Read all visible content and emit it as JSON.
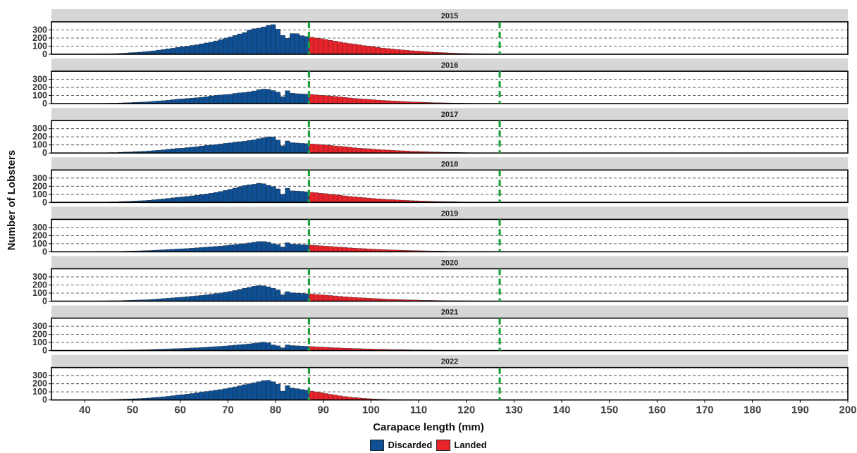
{
  "chart_data": {
    "type": "bar",
    "layout": "small multiples: one panel per year, stacked vertically, shared x axis",
    "panels": [
      "2015",
      "2016",
      "2017",
      "2018",
      "2019",
      "2020",
      "2021",
      "2022"
    ],
    "xlabel": "Carapace length (mm)",
    "ylabel": "Number of Lobsters",
    "xlim": [
      33,
      200
    ],
    "ylim": [
      0,
      400
    ],
    "x_ticks": [
      40,
      50,
      60,
      70,
      80,
      90,
      100,
      110,
      120,
      130,
      140,
      150,
      160,
      170,
      180,
      190,
      200
    ],
    "y_ticks": [
      0,
      100,
      200,
      300
    ],
    "grid": "horizontal dashed lines at 0, 100, 200, 300",
    "bin_width_mm": 1,
    "reference_lines": [
      {
        "x": 87,
        "color": "#1ea03c",
        "style": "dashed"
      },
      {
        "x": 127,
        "color": "#1ea03c",
        "style": "dashed"
      }
    ],
    "series": [
      {
        "name": "Discarded",
        "color": "#0f4f94",
        "x_range": [
          33,
          86
        ]
      },
      {
        "name": "Landed",
        "color": "#e8232a",
        "x_range": [
          87,
          200
        ]
      }
    ],
    "legend_position": "bottom",
    "bin_start": 33,
    "bin_end": 199,
    "values": {
      "2015": [
        0,
        0,
        0,
        1,
        1,
        1,
        2,
        2,
        3,
        4,
        5,
        5,
        6,
        8,
        11,
        14,
        19,
        22,
        26,
        31,
        36,
        43,
        52,
        58,
        67,
        75,
        84,
        92,
        100,
        109,
        117,
        129,
        140,
        150,
        165,
        181,
        196,
        214,
        232,
        252,
        268,
        296,
        315,
        322,
        338,
        357,
        366,
        310,
        233,
        198,
        256,
        254,
        230,
        220,
        210,
        200,
        193,
        183,
        172,
        162,
        152,
        142,
        133,
        126,
        117,
        108,
        100,
        92,
        84,
        77,
        71,
        65,
        59,
        54,
        49,
        44,
        40,
        36,
        32,
        28,
        25,
        22,
        19,
        17,
        14,
        12,
        10,
        9,
        8,
        7,
        6,
        5,
        5,
        5,
        4,
        4,
        4,
        4,
        3,
        3,
        3,
        3,
        3,
        2,
        2,
        2,
        2,
        2,
        2,
        2,
        2,
        1,
        1,
        1,
        1,
        1,
        1,
        1,
        1,
        1,
        1,
        1,
        1,
        1,
        1,
        1,
        1,
        1,
        1,
        1,
        1,
        1,
        1,
        1,
        0,
        0,
        0,
        0,
        0,
        0,
        0,
        0,
        0,
        0,
        0,
        0,
        0,
        0,
        0,
        0,
        0,
        0,
        0,
        0,
        0,
        0,
        0,
        0,
        0,
        0,
        0,
        0,
        0,
        0,
        0,
        0,
        0
      ],
      "2016": [
        0,
        0,
        0,
        1,
        1,
        1,
        1,
        2,
        3,
        4,
        4,
        5,
        6,
        6,
        9,
        11,
        13,
        16,
        18,
        20,
        24,
        29,
        34,
        37,
        43,
        49,
        55,
        59,
        64,
        69,
        74,
        79,
        86,
        94,
        103,
        107,
        112,
        116,
        127,
        134,
        137,
        146,
        157,
        173,
        180,
        177,
        162,
        143,
        87,
        160,
        130,
        123,
        121,
        118,
        114,
        109,
        104,
        99,
        94,
        89,
        83,
        77,
        71,
        66,
        61,
        57,
        53,
        48,
        44,
        40,
        37,
        34,
        31,
        28,
        25,
        22,
        20,
        18,
        16,
        14,
        12,
        11,
        10,
        9,
        8,
        7,
        6,
        5,
        5,
        4,
        4,
        4,
        3,
        3,
        3,
        3,
        2,
        2,
        2,
        2,
        2,
        2,
        2,
        2,
        2,
        1,
        1,
        1,
        1,
        1,
        1,
        1,
        1,
        1,
        1,
        1,
        1,
        1,
        1,
        1,
        1,
        1,
        1,
        1,
        1,
        1,
        1,
        1,
        0,
        0,
        0,
        0,
        0,
        0,
        0,
        0,
        0,
        0,
        0,
        0,
        0,
        0,
        0,
        0,
        0,
        0,
        0,
        0,
        0,
        0,
        0,
        0,
        0,
        0,
        0,
        0,
        0,
        0,
        0,
        0,
        0,
        0,
        0
      ],
      "2017": [
        0,
        0,
        0,
        1,
        1,
        1,
        1,
        2,
        3,
        3,
        4,
        4,
        6,
        6,
        10,
        12,
        13,
        17,
        19,
        21,
        25,
        31,
        35,
        40,
        46,
        52,
        58,
        61,
        67,
        72,
        79,
        86,
        94,
        98,
        105,
        112,
        120,
        126,
        135,
        140,
        146,
        155,
        163,
        178,
        188,
        200,
        198,
        160,
        90,
        150,
        128,
        124,
        120,
        116,
        113,
        109,
        104,
        99,
        94,
        88,
        83,
        77,
        71,
        66,
        61,
        57,
        53,
        48,
        44,
        40,
        37,
        34,
        31,
        28,
        25,
        22,
        20,
        18,
        16,
        14,
        12,
        11,
        10,
        9,
        8,
        7,
        6,
        5,
        5,
        4,
        4,
        4,
        3,
        3,
        3,
        3,
        2,
        2,
        2,
        2,
        2,
        2,
        2,
        2,
        2,
        1,
        1,
        1,
        1,
        1,
        1,
        1,
        1,
        1,
        1,
        1,
        1,
        1,
        1,
        1,
        1,
        1,
        1,
        1,
        1,
        1,
        1,
        1,
        0,
        0,
        0,
        0,
        0,
        0,
        0,
        0,
        0,
        0,
        0,
        0,
        0,
        0,
        0,
        0,
        0,
        0,
        0,
        0,
        0,
        0,
        0,
        0,
        0,
        0,
        0,
        0,
        0,
        0,
        0,
        0,
        0,
        0,
        0
      ],
      "2018": [
        0,
        0,
        0,
        1,
        1,
        1,
        2,
        2,
        3,
        4,
        5,
        5,
        7,
        7,
        10,
        12,
        14,
        18,
        20,
        23,
        27,
        33,
        38,
        43,
        50,
        57,
        63,
        68,
        75,
        81,
        88,
        96,
        105,
        113,
        124,
        135,
        149,
        163,
        177,
        192,
        208,
        218,
        225,
        237,
        231,
        211,
        195,
        168,
        102,
        176,
        143,
        141,
        137,
        132,
        125,
        120,
        114,
        108,
        101,
        94,
        88,
        81,
        75,
        69,
        64,
        59,
        54,
        49,
        45,
        41,
        37,
        34,
        31,
        28,
        25,
        22,
        20,
        18,
        16,
        14,
        12,
        11,
        10,
        9,
        8,
        7,
        6,
        5,
        5,
        4,
        4,
        4,
        3,
        3,
        3,
        3,
        2,
        2,
        2,
        2,
        2,
        2,
        2,
        2,
        2,
        1,
        1,
        1,
        1,
        1,
        1,
        1,
        1,
        1,
        1,
        1,
        1,
        1,
        1,
        1,
        1,
        1,
        1,
        1,
        1,
        1,
        1,
        1,
        0,
        0,
        0,
        0,
        0,
        0,
        0,
        0,
        0,
        0,
        0,
        0,
        0,
        0,
        0,
        0,
        0,
        0,
        0,
        0,
        0,
        0,
        0,
        0,
        0,
        0,
        0,
        0,
        0,
        0,
        0,
        0,
        0,
        0,
        0
      ],
      "2019": [
        0,
        0,
        0,
        1,
        1,
        1,
        1,
        2,
        2,
        3,
        4,
        4,
        5,
        5,
        6,
        8,
        9,
        11,
        12,
        14,
        16,
        19,
        22,
        25,
        29,
        32,
        35,
        38,
        41,
        45,
        49,
        53,
        58,
        62,
        67,
        72,
        77,
        83,
        89,
        95,
        102,
        110,
        119,
        127,
        128,
        120,
        100,
        90,
        60,
        112,
        95,
        92,
        89,
        86,
        82,
        78,
        74,
        70,
        66,
        61,
        57,
        53,
        49,
        46,
        42,
        39,
        36,
        33,
        30,
        28,
        25,
        23,
        21,
        19,
        17,
        16,
        14,
        13,
        12,
        11,
        10,
        9,
        8,
        7,
        6,
        6,
        5,
        5,
        4,
        4,
        4,
        3,
        3,
        3,
        3,
        2,
        2,
        2,
        2,
        2,
        2,
        2,
        2,
        2,
        1,
        1,
        1,
        1,
        1,
        1,
        1,
        1,
        1,
        1,
        1,
        1,
        1,
        1,
        1,
        1,
        1,
        1,
        1,
        1,
        1,
        1,
        1,
        1,
        0,
        0,
        0,
        0,
        0,
        0,
        0,
        0,
        0,
        0,
        0,
        0,
        0,
        0,
        0,
        0,
        0,
        0,
        0,
        0,
        0,
        0,
        0,
        0,
        0,
        0,
        0,
        0,
        0,
        0,
        0,
        0,
        0,
        0,
        0
      ],
      "2020": [
        0,
        0,
        0,
        1,
        1,
        1,
        2,
        2,
        3,
        3,
        4,
        4,
        5,
        6,
        7,
        9,
        11,
        13,
        15,
        17,
        20,
        24,
        29,
        32,
        37,
        42,
        47,
        51,
        56,
        61,
        66,
        72,
        79,
        86,
        94,
        103,
        112,
        121,
        132,
        146,
        160,
        172,
        184,
        192,
        190,
        178,
        160,
        140,
        80,
        118,
        104,
        100,
        96,
        92,
        88,
        83,
        79,
        74,
        70,
        65,
        60,
        55,
        51,
        47,
        43,
        40,
        37,
        34,
        31,
        28,
        25,
        23,
        21,
        19,
        17,
        15,
        14,
        12,
        11,
        10,
        9,
        8,
        7,
        6,
        6,
        5,
        5,
        4,
        4,
        4,
        3,
        3,
        3,
        3,
        2,
        2,
        2,
        2,
        2,
        2,
        2,
        2,
        2,
        1,
        1,
        1,
        1,
        1,
        1,
        1,
        1,
        1,
        1,
        1,
        1,
        1,
        1,
        1,
        1,
        1,
        1,
        1,
        1,
        1,
        1,
        1,
        1,
        1,
        0,
        0,
        0,
        0,
        0,
        0,
        0,
        0,
        0,
        0,
        0,
        0,
        0,
        0,
        0,
        0,
        0,
        0,
        0,
        0,
        0,
        0,
        0,
        0,
        0,
        0,
        0,
        0,
        0,
        0,
        0,
        0,
        0,
        0,
        0
      ],
      "2021": [
        0,
        0,
        0,
        0,
        1,
        1,
        1,
        1,
        2,
        2,
        3,
        3,
        4,
        4,
        5,
        6,
        7,
        8,
        9,
        10,
        12,
        14,
        16,
        18,
        20,
        23,
        25,
        27,
        30,
        33,
        35,
        38,
        41,
        45,
        49,
        53,
        57,
        62,
        67,
        72,
        77,
        83,
        89,
        96,
        105,
        96,
        70,
        60,
        35,
        70,
        62,
        59,
        56,
        53,
        50,
        47,
        44,
        41,
        38,
        35,
        33,
        30,
        28,
        26,
        24,
        22,
        20,
        18,
        17,
        16,
        14,
        13,
        12,
        11,
        10,
        9,
        8,
        7,
        7,
        6,
        5,
        5,
        4,
        4,
        4,
        3,
        3,
        3,
        3,
        2,
        2,
        2,
        2,
        2,
        2,
        2,
        2,
        2,
        1,
        1,
        1,
        1,
        1,
        1,
        1,
        1,
        1,
        1,
        1,
        1,
        1,
        1,
        1,
        1,
        1,
        1,
        1,
        1,
        1,
        1,
        1,
        1,
        1,
        1,
        1,
        1,
        0,
        0,
        0,
        0,
        0,
        0,
        0,
        0,
        0,
        0,
        0,
        0,
        0,
        0,
        0,
        0,
        0,
        0,
        0,
        0,
        0,
        0,
        0,
        0,
        0,
        0,
        0,
        0,
        0,
        0,
        0,
        0,
        0,
        0,
        0,
        0,
        0
      ],
      "2022": [
        0,
        0,
        0,
        1,
        1,
        1,
        2,
        2,
        3,
        4,
        4,
        5,
        6,
        7,
        9,
        11,
        13,
        15,
        18,
        21,
        25,
        30,
        35,
        40,
        46,
        53,
        60,
        66,
        73,
        80,
        88,
        97,
        106,
        113,
        121,
        130,
        140,
        150,
        162,
        175,
        189,
        200,
        212,
        226,
        238,
        242,
        226,
        196,
        110,
        176,
        148,
        140,
        130,
        120,
        110,
        100,
        90,
        80,
        70,
        60,
        51,
        43,
        36,
        30,
        25,
        20,
        16,
        13,
        10,
        8,
        6,
        5,
        4,
        3,
        3,
        2,
        2,
        2,
        2,
        1,
        1,
        1,
        1,
        1,
        1,
        1,
        1,
        1,
        1,
        0,
        0,
        0,
        0,
        0,
        0,
        0,
        0,
        0,
        0,
        0,
        0,
        0,
        0,
        0,
        0,
        0,
        0,
        0,
        0,
        0,
        0,
        0,
        0,
        0,
        0,
        0,
        0,
        0,
        0,
        0,
        0,
        0,
        0,
        0,
        0,
        0,
        0,
        0,
        0,
        0,
        0,
        0,
        0,
        0,
        0,
        0,
        0,
        0,
        0,
        0,
        0,
        0,
        0,
        0,
        0,
        0,
        0,
        0,
        0,
        0,
        0,
        0,
        0,
        0,
        0,
        0,
        0,
        0,
        0,
        0,
        0,
        0,
        0,
        0,
        0,
        0
      ]
    }
  }
}
